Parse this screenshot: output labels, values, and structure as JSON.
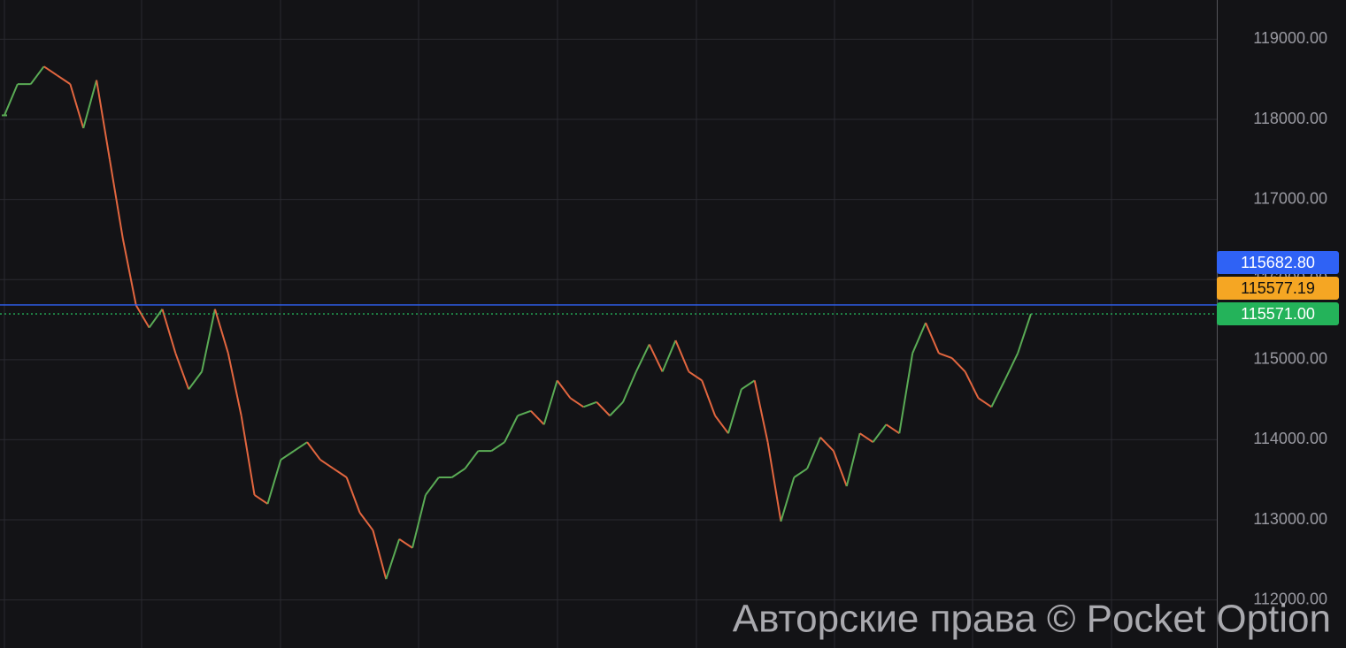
{
  "chart_data": {
    "type": "line",
    "values": [
      118050,
      118440,
      118440,
      118660,
      118550,
      118440,
      117890,
      118490,
      117500,
      116510,
      115680,
      115400,
      115630,
      115080,
      114630,
      114850,
      115630,
      115080,
      114300,
      113310,
      113200,
      113750,
      113860,
      113970,
      113750,
      113640,
      113530,
      113090,
      112870,
      112260,
      112760,
      112650,
      113310,
      113530,
      113530,
      113640,
      113860,
      113860,
      113970,
      114300,
      114360,
      114190,
      114740,
      114520,
      114410,
      114470,
      114300,
      114470,
      114850,
      115190,
      114850,
      115240,
      114850,
      114740,
      114300,
      114080,
      114630,
      114740,
      113970,
      112980,
      113530,
      113640,
      114030,
      113860,
      113420,
      114080,
      113970,
      114190,
      114080,
      115080,
      115460,
      115080,
      115020,
      114850,
      114520,
      114410,
      114740,
      115080,
      115571
    ],
    "up_color": "#5aab55",
    "down_color": "#e2663f",
    "ylim": [
      111400,
      119490
    ],
    "yticks": [
      {
        "value": 112000,
        "label": "112000.00"
      },
      {
        "value": 113000,
        "label": "113000.00"
      },
      {
        "value": 114000,
        "label": "114000.00"
      },
      {
        "value": 115000,
        "label": "115000.00"
      },
      {
        "value": 116000,
        "label": "116000.00"
      },
      {
        "value": 117000,
        "label": "117000.00"
      },
      {
        "value": 118000,
        "label": "118000.00"
      },
      {
        "value": 119000,
        "label": "119000.00"
      }
    ],
    "grid": true,
    "price_lines": [
      {
        "value": 115682.8,
        "label": "115682.80",
        "color": "#2f62f5",
        "style": "solid"
      },
      {
        "value": 115577.19,
        "label": "115577.19",
        "color": "#f5a623",
        "style": "none"
      },
      {
        "value": 115571,
        "label": "115571.00",
        "color": "#24b35a",
        "style": "dotted"
      }
    ],
    "watermark": "Авторские права © Pocket Option"
  }
}
